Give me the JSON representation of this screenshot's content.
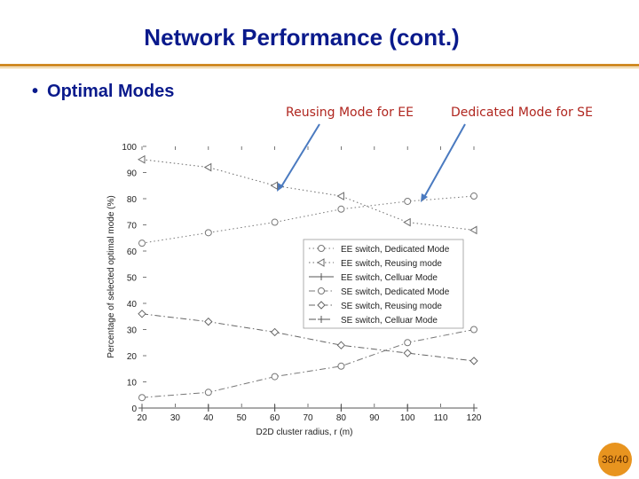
{
  "slide": {
    "title": "Network Performance (cont.)",
    "bullet_marker": "•",
    "bullet": "Optimal Modes",
    "callout_ee": "Reusing Mode for EE",
    "callout_se": "Dedicated Mode for SE",
    "page": "38/40",
    "accent_color": "#d08a24",
    "title_color": "#0a1a8c",
    "callout_color": "#b0261f"
  },
  "chart_data": {
    "type": "line",
    "xlabel": "D2D cluster radius, r (m)",
    "ylabel": "Percentage of selected optimal mode (%)",
    "xlim": [
      20,
      120
    ],
    "ylim": [
      0,
      100
    ],
    "xticks": [
      20,
      30,
      40,
      50,
      60,
      70,
      80,
      90,
      100,
      110,
      120
    ],
    "yticks": [
      0,
      10,
      20,
      30,
      40,
      50,
      60,
      70,
      80,
      90,
      100
    ],
    "x": [
      20,
      40,
      60,
      80,
      100,
      120
    ],
    "grid": false,
    "legend_position": "center-right",
    "series": [
      {
        "name": "EE switch, Dedicated Mode",
        "values": [
          63,
          67,
          71,
          76,
          79,
          81
        ],
        "marker": "circle",
        "line": "dotted"
      },
      {
        "name": "EE switch, Reusing mode",
        "values": [
          95,
          92,
          85,
          81,
          71,
          68
        ],
        "marker": "triangle",
        "line": "dotted"
      },
      {
        "name": "EE switch, Celluar Mode",
        "values": [
          0,
          0,
          0,
          0,
          0,
          0
        ],
        "marker": "plus",
        "line": "solid"
      },
      {
        "name": "SE switch, Dedicated Mode",
        "values": [
          4,
          6,
          12,
          16,
          25,
          30
        ],
        "marker": "circle",
        "line": "dashdot"
      },
      {
        "name": "SE switch, Reusing mode",
        "values": [
          36,
          33,
          29,
          24,
          21,
          18
        ],
        "marker": "diamond",
        "line": "dashdot"
      },
      {
        "name": "SE switch, Celluar Mode",
        "values": [
          0,
          0,
          0,
          0,
          0,
          0
        ],
        "marker": "plus",
        "line": "dashed"
      }
    ]
  }
}
